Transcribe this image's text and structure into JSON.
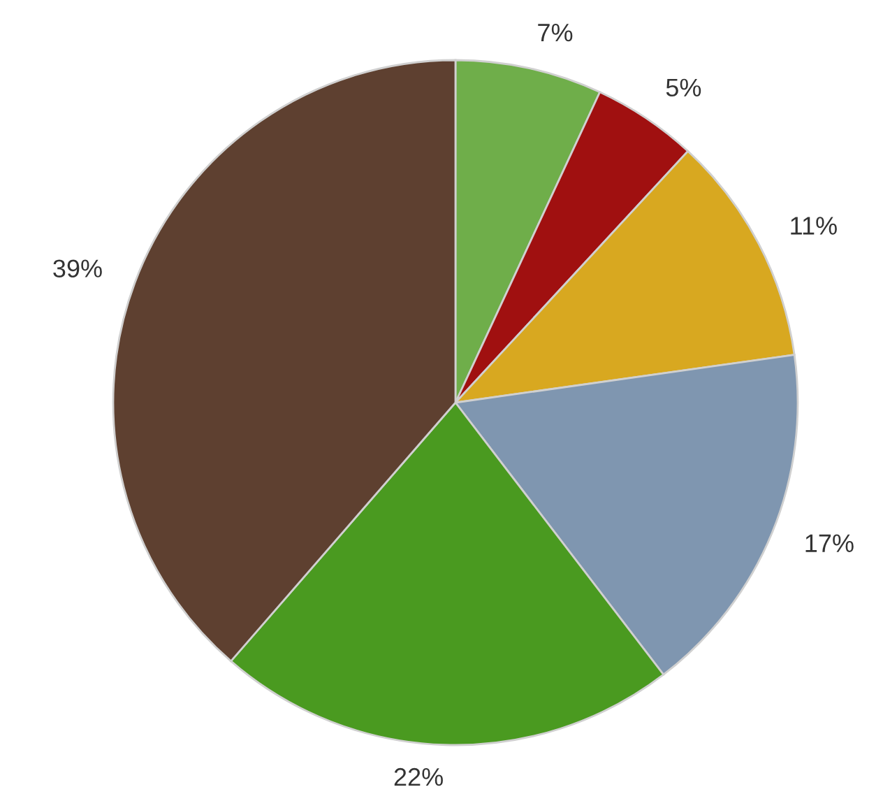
{
  "chart_data": {
    "type": "pie",
    "categories": [
      null,
      null,
      null,
      null,
      null,
      null
    ],
    "values": [
      7,
      5,
      11,
      17,
      22,
      39
    ],
    "colors": [
      "#6fae4a",
      "#a01010",
      "#d8a820",
      "#7f96b0",
      "#4a9a20",
      "#5e4030"
    ],
    "value_labels": [
      "7%",
      "5%",
      "11%",
      "17%",
      "22%",
      "39%"
    ]
  }
}
